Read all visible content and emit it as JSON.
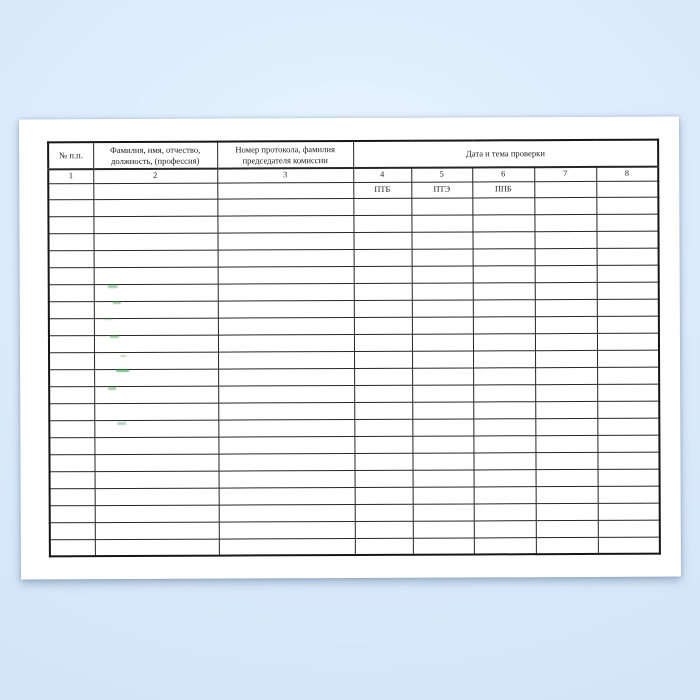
{
  "table": {
    "header": {
      "number_col": "№ п.п.",
      "name_col": "Фамилия, имя, отчество,\nдолжность, (профессия)",
      "protocol_col": "Номер протокола, фамилия\nпредседателя комиссии",
      "date_col": "Дата и тема проверки"
    },
    "column_numbers": [
      "1",
      "2",
      "3",
      "4",
      "5",
      "6",
      "7",
      "8"
    ],
    "subheader_labels": {
      "col4": "ПТБ",
      "col5": "ПТЭ",
      "col6": "ППБ"
    },
    "data_row_count": 21,
    "column_count": 8
  },
  "colors": {
    "background_blue": "#d7e8fa",
    "page_bg": "#ffffff",
    "table_line": "#262626",
    "faded_line": "#8f8f8f",
    "artifact_green": "#3f9e57"
  }
}
